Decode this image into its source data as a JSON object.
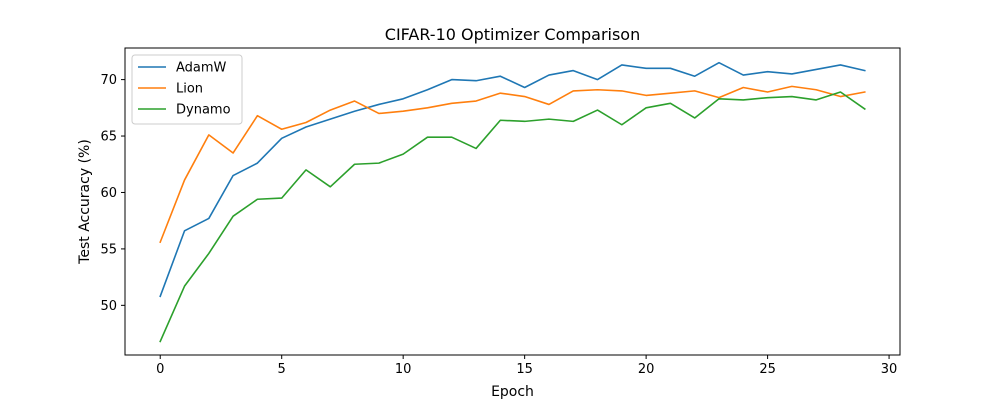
{
  "chart_data": {
    "type": "line",
    "title": "CIFAR-10 Optimizer Comparison",
    "xlabel": "Epoch",
    "ylabel": "Test Accuracy (%)",
    "xlim": [
      -1.45,
      30.45
    ],
    "ylim": [
      45.6,
      72.8
    ],
    "xticks": [
      0,
      5,
      10,
      15,
      20,
      25,
      30
    ],
    "yticks": [
      50,
      55,
      60,
      65,
      70
    ],
    "legend_position": "top-left",
    "grid": false,
    "x": [
      0,
      1,
      2,
      3,
      4,
      5,
      6,
      7,
      8,
      9,
      10,
      11,
      12,
      13,
      14,
      15,
      16,
      17,
      18,
      19,
      20,
      21,
      22,
      23,
      24,
      25,
      26,
      27,
      28,
      29
    ],
    "series": [
      {
        "name": "AdamW",
        "color": "#1f77b4",
        "values": [
          50.8,
          56.6,
          57.7,
          61.5,
          62.6,
          64.8,
          65.8,
          66.5,
          67.2,
          67.8,
          68.3,
          69.1,
          70.0,
          69.9,
          70.3,
          69.3,
          70.4,
          70.8,
          70.0,
          71.3,
          71.0,
          71.0,
          70.3,
          71.5,
          70.4,
          70.7,
          70.5,
          70.9,
          71.3,
          70.8
        ]
      },
      {
        "name": "Lion",
        "color": "#ff7f0e",
        "values": [
          55.6,
          61.1,
          65.1,
          63.5,
          66.8,
          65.6,
          66.2,
          67.3,
          68.1,
          67.0,
          67.2,
          67.5,
          67.9,
          68.1,
          68.8,
          68.5,
          67.8,
          69.0,
          69.1,
          69.0,
          68.6,
          68.8,
          69.0,
          68.4,
          69.3,
          68.9,
          69.4,
          69.1,
          68.5,
          68.9
        ]
      },
      {
        "name": "Dynamo",
        "color": "#2ca02c",
        "values": [
          46.8,
          51.7,
          54.6,
          57.9,
          59.4,
          59.5,
          62.0,
          60.5,
          62.5,
          62.6,
          63.4,
          64.9,
          64.9,
          63.9,
          66.4,
          66.3,
          66.5,
          66.3,
          67.3,
          66.0,
          67.5,
          67.9,
          66.6,
          68.3,
          68.2,
          68.4,
          68.5,
          68.2,
          68.9,
          67.4
        ]
      }
    ]
  }
}
